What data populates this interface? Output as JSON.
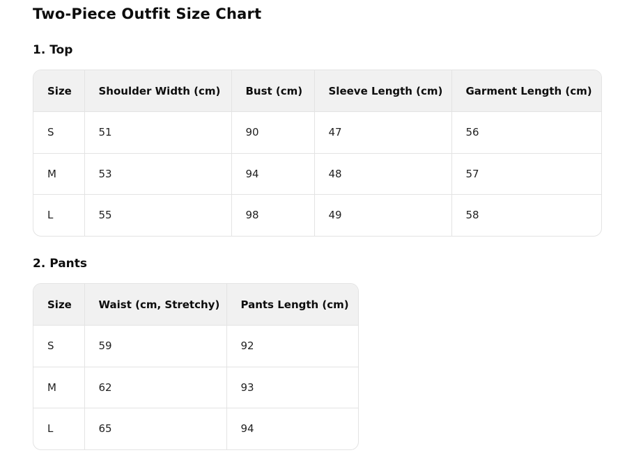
{
  "title": "Two-Piece Outfit Size Chart",
  "top": {
    "heading": "1. Top",
    "headers": [
      "Size",
      "Shoulder Width (cm)",
      "Bust (cm)",
      "Sleeve Length (cm)",
      "Garment Length (cm)"
    ],
    "rows": [
      [
        "S",
        "51",
        "90",
        "47",
        "56"
      ],
      [
        "M",
        "53",
        "94",
        "48",
        "57"
      ],
      [
        "L",
        "55",
        "98",
        "49",
        "58"
      ]
    ]
  },
  "pants": {
    "heading": "2. Pants",
    "headers": [
      "Size",
      "Waist (cm, Stretchy)",
      "Pants Length (cm)"
    ],
    "rows": [
      [
        "S",
        "59",
        "92"
      ],
      [
        "M",
        "62",
        "93"
      ],
      [
        "L",
        "65",
        "94"
      ]
    ]
  }
}
